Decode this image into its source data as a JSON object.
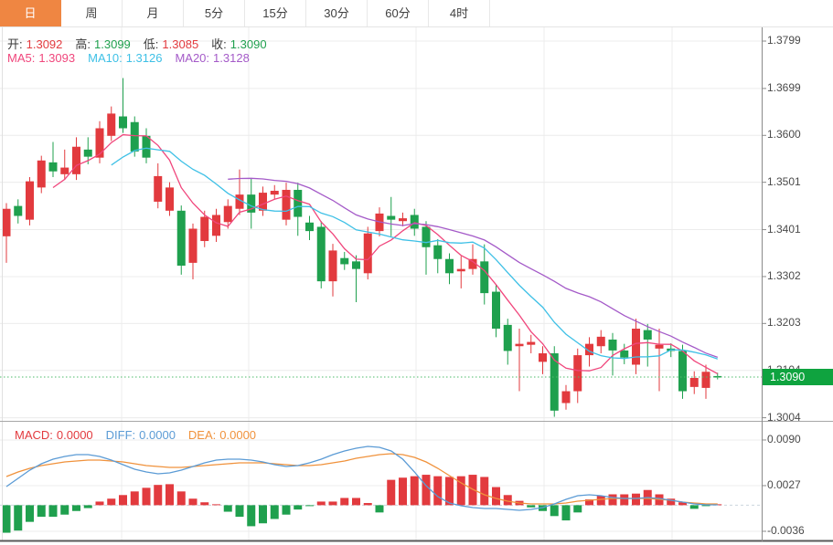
{
  "tabs": {
    "items": [
      {
        "label": "日",
        "active": true
      },
      {
        "label": "周",
        "active": false
      },
      {
        "label": "月",
        "active": false
      },
      {
        "label": "5分",
        "active": false
      },
      {
        "label": "15分",
        "active": false
      },
      {
        "label": "30分",
        "active": false
      },
      {
        "label": "60分",
        "active": false
      },
      {
        "label": "4时",
        "active": false
      }
    ]
  },
  "legend": {
    "open_label": "开:",
    "open": "1.3092",
    "high_label": "高:",
    "high": "1.3099",
    "low_label": "低:",
    "low": "1.3085",
    "close_label": "收:",
    "close": "1.3090",
    "ma5_label": "MA5:",
    "ma5": "1.3093",
    "ma10_label": "MA10:",
    "ma10": "1.3126",
    "ma20_label": "MA20:",
    "ma20": "1.3128"
  },
  "macd_legend": {
    "macd_label": "MACD:",
    "macd": "0.0000",
    "diff_label": "DIFF:",
    "diff": "0.0000",
    "dea_label": "DEA:",
    "dea": "0.0000"
  },
  "price_axis": {
    "current_price_label": "1.3090"
  },
  "colors": {
    "up": "#e23a3e",
    "down": "#1fa04e",
    "ma5": "#f0467c",
    "ma10": "#3ec0e6",
    "ma20": "#a45ac8",
    "diff": "#5b9bd5",
    "dea": "#f0923c",
    "tab_active_bg": "#ef8642",
    "price_line": "#4dbb6a",
    "badge_bg": "#0fa33f",
    "grid": "#ececec",
    "axis": "#8a8a8a"
  },
  "chart_data": {
    "type": "candlestick+macd",
    "title": "",
    "price_axis_ticks": [
      1.3799,
      1.3699,
      1.36,
      1.3501,
      1.3401,
      1.3302,
      1.3203,
      1.3104,
      1.3004
    ],
    "current_price": 1.309,
    "ma_periods": [
      5,
      10,
      20
    ],
    "candles": [
      [
        1.3387,
        1.3457,
        1.3331,
        1.3445
      ],
      [
        1.3451,
        1.3465,
        1.3414,
        1.343
      ],
      [
        1.3422,
        1.3512,
        1.341,
        1.3503
      ],
      [
        1.349,
        1.3557,
        1.3478,
        1.3547
      ],
      [
        1.3543,
        1.3586,
        1.3512,
        1.3524
      ],
      [
        1.3518,
        1.357,
        1.3506,
        1.3532
      ],
      [
        1.3518,
        1.3596,
        1.3506,
        1.3576
      ],
      [
        1.357,
        1.3596,
        1.3539,
        1.3555
      ],
      [
        1.3553,
        1.363,
        1.3541,
        1.3615
      ],
      [
        1.3599,
        1.3661,
        1.3588,
        1.3646
      ],
      [
        1.364,
        1.3721,
        1.3605,
        1.3615
      ],
      [
        1.3628,
        1.364,
        1.3555,
        1.3566
      ],
      [
        1.3599,
        1.3615,
        1.3541,
        1.3553
      ],
      [
        1.346,
        1.3541,
        1.3446,
        1.3514
      ],
      [
        1.3441,
        1.3501,
        1.343,
        1.349
      ],
      [
        1.3441,
        1.3452,
        1.3306,
        1.3325
      ],
      [
        1.3331,
        1.3414,
        1.3296,
        1.3403
      ],
      [
        1.3377,
        1.3441,
        1.3364,
        1.3428
      ],
      [
        1.3388,
        1.3445,
        1.3375,
        1.3432
      ],
      [
        1.3417,
        1.3465,
        1.3403,
        1.3451
      ],
      [
        1.3445,
        1.3528,
        1.3432,
        1.3475
      ],
      [
        1.3475,
        1.3508,
        1.3403,
        1.3437
      ],
      [
        1.3441,
        1.3492,
        1.343,
        1.3479
      ],
      [
        1.3475,
        1.3495,
        1.3465,
        1.3483
      ],
      [
        1.3422,
        1.35,
        1.341,
        1.3485
      ],
      [
        1.3485,
        1.35,
        1.3388,
        1.3428
      ],
      [
        1.3416,
        1.343,
        1.3379,
        1.3398
      ],
      [
        1.3407,
        1.3419,
        1.3277,
        1.3292
      ],
      [
        1.3292,
        1.3371,
        1.326,
        1.3357
      ],
      [
        1.3341,
        1.3354,
        1.3316,
        1.3328
      ],
      [
        1.3334,
        1.3347,
        1.3248,
        1.3318
      ],
      [
        1.3309,
        1.3407,
        1.3296,
        1.3393
      ],
      [
        1.3398,
        1.3448,
        1.3387,
        1.3435
      ],
      [
        1.343,
        1.347,
        1.3387,
        1.3422
      ],
      [
        1.3419,
        1.3437,
        1.3408,
        1.3425
      ],
      [
        1.3432,
        1.3445,
        1.3388,
        1.3403
      ],
      [
        1.3407,
        1.3419,
        1.3306,
        1.3364
      ],
      [
        1.3368,
        1.3381,
        1.3309,
        1.3339
      ],
      [
        1.3339,
        1.3351,
        1.3286,
        1.3309
      ],
      [
        1.3313,
        1.3345,
        1.3277,
        1.3318
      ],
      [
        1.3318,
        1.337,
        1.3306,
        1.3339
      ],
      [
        1.3334,
        1.337,
        1.3243,
        1.3267
      ],
      [
        1.327,
        1.3284,
        1.3174,
        1.3192
      ],
      [
        1.32,
        1.3213,
        1.3116,
        1.3145
      ],
      [
        1.3155,
        1.3192,
        1.306,
        1.316
      ],
      [
        1.3158,
        1.3179,
        1.314,
        1.3164
      ],
      [
        1.3122,
        1.3155,
        1.3096,
        1.314
      ],
      [
        1.314,
        1.3155,
        1.3006,
        1.3019
      ],
      [
        1.3035,
        1.3073,
        1.3021,
        1.306
      ],
      [
        1.306,
        1.315,
        1.3035,
        1.3136
      ],
      [
        1.3136,
        1.3174,
        1.3112,
        1.316
      ],
      [
        1.3155,
        1.3189,
        1.314,
        1.3175
      ],
      [
        1.3169,
        1.3183,
        1.3093,
        1.3146
      ],
      [
        1.3146,
        1.316,
        1.3117,
        1.3131
      ],
      [
        1.3116,
        1.3213,
        1.3096,
        1.3192
      ],
      [
        1.3189,
        1.3202,
        1.3112,
        1.3169
      ],
      [
        1.315,
        1.3192,
        1.306,
        1.3158
      ],
      [
        1.315,
        1.3161,
        1.3132,
        1.3145
      ],
      [
        1.3145,
        1.3158,
        1.3044,
        1.306
      ],
      [
        1.3069,
        1.3102,
        1.3054,
        1.3088
      ],
      [
        1.3067,
        1.3116,
        1.3044,
        1.3101
      ],
      [
        1.3092,
        1.3099,
        1.3085,
        1.309
      ]
    ],
    "macd": {
      "axis_ticks": [
        0.009,
        0.0027,
        -0.0036
      ],
      "histogram": [
        -0.0038,
        -0.0035,
        -0.0023,
        -0.0016,
        -0.0016,
        -0.0013,
        -0.0008,
        -0.0004,
        0.0005,
        0.0009,
        0.0014,
        0.0019,
        0.0024,
        0.0028,
        0.0029,
        0.0019,
        0.0009,
        0.0004,
        0.0001,
        -0.0009,
        -0.0016,
        -0.0029,
        -0.0025,
        -0.0019,
        -0.0013,
        -0.0006,
        -0.0001,
        0.0005,
        0.0005,
        0.001,
        0.001,
        0.0003,
        -0.001,
        0.0035,
        0.0038,
        0.004,
        0.0042,
        0.004,
        0.0039,
        0.004,
        0.0042,
        0.0039,
        0.0025,
        0.0014,
        0.0006,
        -0.0003,
        -0.0008,
        -0.0015,
        -0.0021,
        -0.001,
        0.0008,
        0.0013,
        0.0015,
        0.0015,
        0.0016,
        0.0021,
        0.0015,
        0.0009,
        0.0004,
        -0.0005,
        -0.0001,
        0.0001
      ],
      "diff": [
        0.00257,
        0.0037,
        0.00484,
        0.00572,
        0.00635,
        0.00673,
        0.00698,
        0.00698,
        0.00673,
        0.00622,
        0.00559,
        0.00496,
        0.00459,
        0.00433,
        0.00446,
        0.00484,
        0.00534,
        0.00585,
        0.00622,
        0.00635,
        0.00635,
        0.00622,
        0.00597,
        0.00559,
        0.00534,
        0.00547,
        0.00585,
        0.00635,
        0.00698,
        0.00748,
        0.00786,
        0.00811,
        0.00799,
        0.00748,
        0.00635,
        0.00459,
        0.0027,
        0.00118,
        0.0003,
        -8e-05,
        -0.00033,
        -0.00045,
        -0.00045,
        -0.00058,
        -0.00071,
        -0.00058,
        -0.00033,
        0.00018,
        0.00081,
        0.00131,
        0.00144,
        0.00131,
        0.00106,
        0.00093,
        0.00093,
        0.00106,
        0.00093,
        0.00068,
        0.00043,
        0.00018,
        5e-05,
        5e-05
      ],
      "dea": [
        0.00396,
        0.00459,
        0.00509,
        0.00547,
        0.00572,
        0.00597,
        0.0061,
        0.00622,
        0.00622,
        0.0061,
        0.00597,
        0.00572,
        0.00547,
        0.00534,
        0.00522,
        0.00522,
        0.00534,
        0.00547,
        0.00559,
        0.00572,
        0.00585,
        0.00585,
        0.00585,
        0.00572,
        0.00559,
        0.00547,
        0.00547,
        0.00559,
        0.00585,
        0.0061,
        0.00648,
        0.00673,
        0.00698,
        0.00711,
        0.00698,
        0.0066,
        0.00597,
        0.00509,
        0.00408,
        0.00307,
        0.00219,
        0.00144,
        0.00093,
        0.00055,
        0.0003,
        0.00018,
        0.00018,
        0.00018,
        0.0003,
        0.00055,
        0.00068,
        0.00081,
        0.00093,
        0.00093,
        0.00093,
        0.00093,
        0.00081,
        0.00068,
        0.00043,
        0.0003,
        0.00018,
        0.00018
      ]
    }
  }
}
